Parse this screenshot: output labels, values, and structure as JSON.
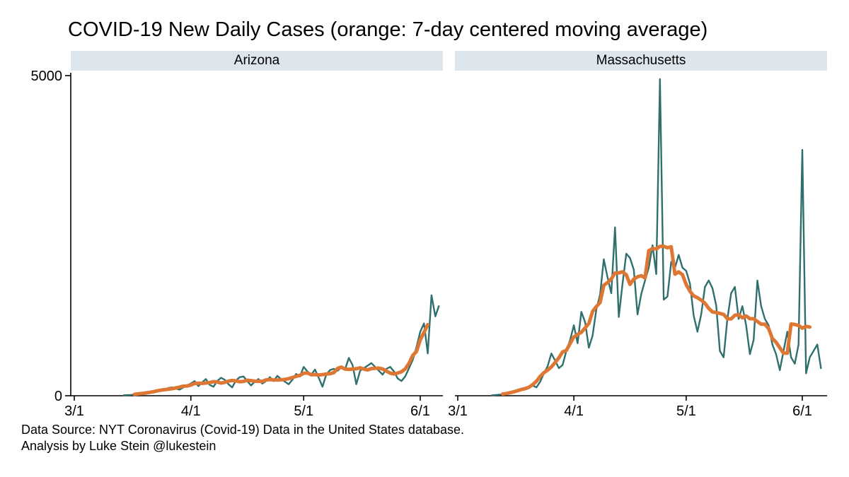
{
  "title": "COVID-19 New Daily Cases (orange: 7-day centered moving average)",
  "footnotes": {
    "source": "Data Source: NYT Coronavirus (Covid-19) Data in the United States database.",
    "analysis": "Analysis by Luke Stein @lukestein"
  },
  "colors": {
    "daily_line": "#2f6f6e",
    "average_line": "#dd7733",
    "panel_band": "#dde6ed",
    "axis": "#000000",
    "background": "#ffffff"
  },
  "chart_data": {
    "type": "line",
    "title": "COVID-19 New Daily Cases (orange: 7-day centered moving average)",
    "xlabel": "",
    "ylabel": "",
    "ylim": [
      0,
      5000
    ],
    "y_tick_values": [
      0,
      5000
    ],
    "y_tick_labels": [
      "0",
      "5000"
    ],
    "x_tick_labels": [
      "3/1",
      "4/1",
      "5/1",
      "6/1"
    ],
    "x_tick_days": [
      0,
      31,
      61,
      92
    ],
    "x_domain_days": [
      0,
      98
    ],
    "grid": false,
    "legend": "none (orange identified in title)",
    "moving_average_window": 7,
    "series_labels": {
      "daily": "new daily cases",
      "average": "7-day centered moving average"
    },
    "panels": [
      {
        "title": "Arizona",
        "first_day_offset_from_3_1": 13,
        "first_date": "3/14",
        "daily_values": [
          5,
          10,
          12,
          20,
          25,
          35,
          45,
          55,
          50,
          70,
          85,
          100,
          120,
          130,
          110,
          95,
          130,
          165,
          190,
          230,
          150,
          210,
          260,
          170,
          140,
          230,
          280,
          250,
          180,
          130,
          240,
          290,
          300,
          230,
          160,
          220,
          260,
          190,
          230,
          290,
          230,
          310,
          260,
          220,
          180,
          250,
          340,
          300,
          450,
          380,
          330,
          410,
          280,
          140,
          330,
          400,
          420,
          390,
          440,
          410,
          590,
          480,
          180,
          390,
          430,
          470,
          510,
          450,
          390,
          330,
          420,
          450,
          380,
          270,
          230,
          300,
          430,
          560,
          760,
          1000,
          1130,
          660,
          1570,
          1240,
          1410
        ]
      },
      {
        "title": "Massachusetts",
        "first_day_offset_from_3_1": 9,
        "first_date": "3/10",
        "daily_values": [
          5,
          10,
          15,
          20,
          30,
          45,
          60,
          70,
          90,
          120,
          140,
          160,
          130,
          220,
          350,
          460,
          660,
          550,
          430,
          480,
          700,
          870,
          1100,
          820,
          1310,
          1150,
          750,
          940,
          1350,
          1580,
          2130,
          1850,
          1600,
          2630,
          1230,
          1750,
          2220,
          2150,
          1970,
          1270,
          1590,
          1800,
          2000,
          2350,
          1900,
          4946,
          1500,
          1550,
          2090,
          2000,
          2200,
          2000,
          1950,
          1750,
          1250,
          1000,
          1270,
          1700,
          1800,
          1680,
          1410,
          700,
          600,
          1200,
          1600,
          1700,
          1200,
          1400,
          1100,
          650,
          870,
          1800,
          1400,
          1200,
          1100,
          800,
          650,
          400,
          700,
          1000,
          600,
          500,
          800,
          3840,
          350,
          600,
          700,
          800,
          420
        ]
      }
    ]
  }
}
